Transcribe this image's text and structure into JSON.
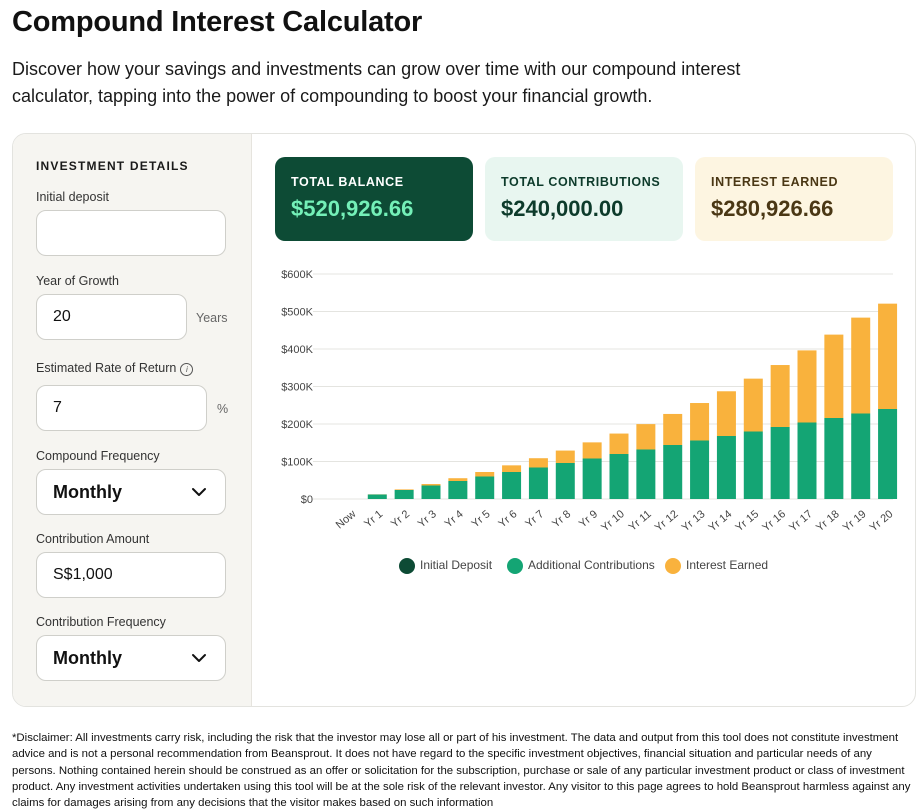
{
  "page": {
    "title": "Compound Interest Calculator",
    "intro": "Discover how your savings and investments can grow over time with our compound interest calculator, tapping into the power of compounding to boost your financial growth."
  },
  "form": {
    "heading": "INVESTMENT DETAILS",
    "initial_deposit": {
      "label": "Initial deposit",
      "value": ""
    },
    "years": {
      "label": "Year of Growth",
      "value": "20",
      "unit": "Years"
    },
    "rate": {
      "label": "Estimated Rate of Return",
      "info_icon": "info-icon",
      "value": "7",
      "unit": "%"
    },
    "compound_frequency": {
      "label": "Compound Frequency",
      "value": "Monthly"
    },
    "contribution_amount": {
      "label": "Contribution Amount",
      "value": "S$1,000"
    },
    "contribution_frequency": {
      "label": "Contribution Frequency",
      "value": "Monthly"
    }
  },
  "summary": {
    "balance": {
      "label": "TOTAL BALANCE",
      "value": "$520,926.66"
    },
    "contributions": {
      "label": "TOTAL CONTRIBUTIONS",
      "value": "$240,000.00"
    },
    "interest": {
      "label": "INTEREST EARNED",
      "value": "$280,926.66"
    }
  },
  "colors": {
    "initial_deposit": "#0d4b35",
    "contributions": "#14a574",
    "interest": "#f9b23d",
    "grid": "#e4e4e0"
  },
  "chart_data": {
    "type": "bar",
    "stacked": true,
    "categories": [
      "Now",
      "Yr 1",
      "Yr 2",
      "Yr 3",
      "Yr 4",
      "Yr 5",
      "Yr 6",
      "Yr 7",
      "Yr 8",
      "Yr 9",
      "Yr 10",
      "Yr 11",
      "Yr 12",
      "Yr 13",
      "Yr 14",
      "Yr 15",
      "Yr 16",
      "Yr 17",
      "Yr 18",
      "Yr 19",
      "Yr 20"
    ],
    "series": [
      {
        "name": "Initial Deposit",
        "values": [
          0,
          0,
          0,
          0,
          0,
          0,
          0,
          0,
          0,
          0,
          0,
          0,
          0,
          0,
          0,
          0,
          0,
          0,
          0,
          0,
          0
        ]
      },
      {
        "name": "Additional Contributions",
        "values": [
          0,
          12000,
          24000,
          36000,
          48000,
          60000,
          72000,
          84000,
          96000,
          108000,
          120000,
          132000,
          144000,
          156000,
          168000,
          180000,
          192000,
          204000,
          216000,
          228000,
          240000
        ]
      },
      {
        "name": "Interest Earned",
        "values": [
          0,
          394,
          1613,
          3917,
          7421,
          11999,
          17747,
          24763,
          33151,
          43024,
          54503,
          67720,
          82815,
          99942,
          119266,
          140967,
          165238,
          192291,
          222355,
          255678,
          280927
        ]
      }
    ],
    "yticks": [
      "$0",
      "$100K",
      "$200K",
      "$300K",
      "$400K",
      "$500K",
      "$600K"
    ],
    "ylim": [
      0,
      600000
    ],
    "grid": true,
    "legend": "bottom"
  },
  "disclaimer": "*Disclaimer: All investments carry risk, including the risk that the investor may lose all or part of his investment. The data and output from this tool does not constitute investment advice and is not a personal recommendation from Beansprout. It does not have regard to the specific investment objectives, financial situation and particular needs of any persons. Nothing contained herein should be construed as an offer or solicitation for the subscription, purchase or sale of any particular investment product or class of investment product. Any investment activities undertaken using this tool will be at the sole risk of the relevant investor. Any visitor to this page agrees to hold Beansprout harmless against any claims for damages arising from any decisions that the visitor makes based on such information"
}
